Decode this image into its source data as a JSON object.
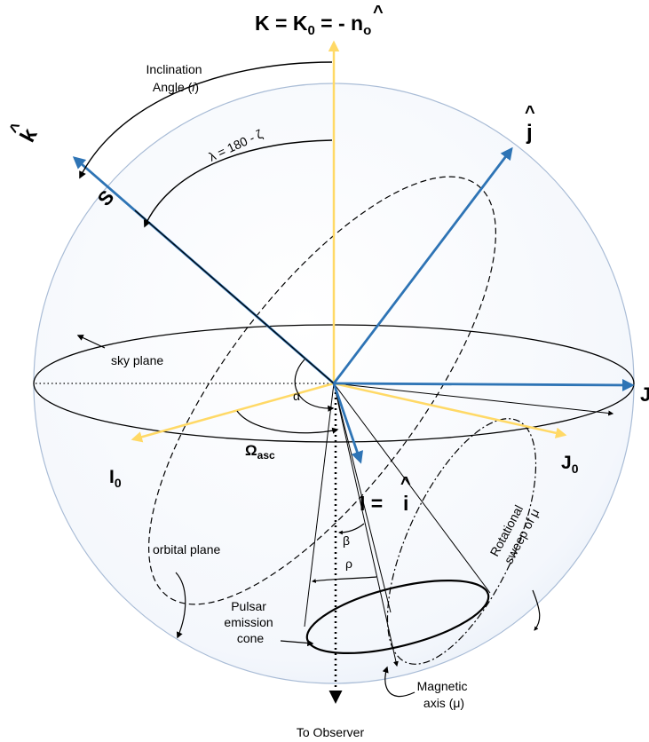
{
  "labels": {
    "top_axis_K": "K = K",
    "top_axis_K_sub": "0",
    "top_axis_eq": " = - ",
    "top_axis_n": "n",
    "top_axis_n_sub": "o",
    "inclination_line1": "Inclination",
    "inclination_line2_pre": "Angle (",
    "inclination_line2_i": "i",
    "inclination_line2_post": ")",
    "lambda": "λ = 180 - ζ",
    "k_hat": "k",
    "j_hat": "j",
    "S": "S",
    "J_right": "J",
    "sky_plane": "sky plane",
    "alpha": "α",
    "omega_main": "Ω",
    "omega_sub": "asc",
    "I0_main": "I",
    "I0_sub": "0",
    "J0_main": "J",
    "J0_sub": "0",
    "I_eq": "I = ",
    "i_hat": "i",
    "beta": "β",
    "rho": "ρ",
    "orbital_plane": "orbital plane",
    "pulsar_line1": "Pulsar",
    "pulsar_line2": "emission",
    "pulsar_line3": "cone",
    "rot_line1": "Rotational",
    "rot_line2": "sweep of μ",
    "magnetic_line1": "Magnetic",
    "magnetic_line2": "axis (μ)",
    "to_observer": "To Observer",
    "hat_glyph": "^"
  },
  "colors": {
    "blue_vector": "#2e74b5",
    "yellow_vector": "#ffd966",
    "sphere_edge": "#a9bcd6",
    "sphere_fill": "#eef3fa",
    "black": "#000000"
  }
}
